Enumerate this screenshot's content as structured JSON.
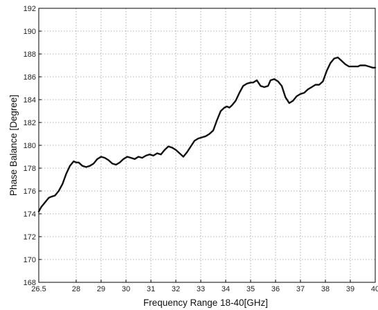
{
  "chart_data": {
    "type": "line",
    "title": "",
    "xlabel": "Frequency Range 18-40[GHz]",
    "ylabel": "Phase Balance [Degree]",
    "xlim": [
      26.5,
      40
    ],
    "ylim": [
      168,
      192
    ],
    "xticks": [
      26.5,
      28,
      29,
      30,
      31,
      32,
      33,
      34,
      35,
      36,
      37,
      38,
      39,
      40
    ],
    "xtick_labels": [
      "26.5",
      "28",
      "29",
      "30",
      "31",
      "32",
      "33",
      "34",
      "35",
      "36",
      "37",
      "38",
      "39",
      "40"
    ],
    "yticks": [
      168,
      170,
      172,
      174,
      176,
      178,
      180,
      182,
      184,
      186,
      188,
      190,
      192
    ],
    "ytick_labels": [
      "168",
      "170",
      "172",
      "174",
      "176",
      "178",
      "180",
      "182",
      "184",
      "186",
      "188",
      "190",
      "192"
    ],
    "grid": true,
    "line_color": "#111111",
    "series": [
      {
        "name": "",
        "x": [
          26.5,
          26.6,
          26.75,
          26.9,
          27.0,
          27.15,
          27.3,
          27.45,
          27.6,
          27.75,
          27.9,
          28.0,
          28.1,
          28.25,
          28.4,
          28.55,
          28.7,
          28.85,
          29.0,
          29.15,
          29.3,
          29.45,
          29.6,
          29.75,
          29.9,
          30.05,
          30.2,
          30.35,
          30.5,
          30.65,
          30.8,
          30.95,
          31.1,
          31.25,
          31.4,
          31.55,
          31.7,
          31.85,
          32.0,
          32.15,
          32.3,
          32.45,
          32.6,
          32.75,
          32.9,
          33.05,
          33.2,
          33.35,
          33.5,
          33.65,
          33.8,
          33.95,
          34.05,
          34.15,
          34.25,
          34.4,
          34.55,
          34.7,
          34.85,
          35.0,
          35.1,
          35.25,
          35.4,
          35.55,
          35.7,
          35.8,
          35.95,
          36.1,
          36.25,
          36.4,
          36.55,
          36.7,
          36.85,
          37.0,
          37.15,
          37.3,
          37.45,
          37.6,
          37.75,
          37.9,
          38.05,
          38.2,
          38.35,
          38.5,
          38.65,
          38.8,
          38.95,
          39.1,
          39.2,
          39.3,
          39.4,
          39.5,
          39.6,
          39.75,
          39.9,
          40.0
        ],
        "y": [
          174.2,
          174.6,
          175.0,
          175.4,
          175.5,
          175.6,
          176.0,
          176.6,
          177.5,
          178.2,
          178.6,
          178.5,
          178.5,
          178.2,
          178.1,
          178.2,
          178.4,
          178.8,
          179.0,
          178.9,
          178.7,
          178.4,
          178.3,
          178.5,
          178.8,
          179.0,
          178.9,
          178.8,
          179.0,
          178.9,
          179.1,
          179.2,
          179.1,
          179.3,
          179.2,
          179.6,
          179.9,
          179.8,
          179.6,
          179.3,
          179.0,
          179.4,
          179.9,
          180.4,
          180.6,
          180.7,
          180.8,
          181.0,
          181.3,
          182.2,
          183.0,
          183.3,
          183.4,
          183.3,
          183.5,
          183.9,
          184.6,
          185.2,
          185.4,
          185.5,
          185.5,
          185.7,
          185.2,
          185.1,
          185.2,
          185.7,
          185.8,
          185.6,
          185.2,
          184.2,
          183.7,
          183.9,
          184.3,
          184.5,
          184.6,
          184.9,
          185.1,
          185.3,
          185.3,
          185.6,
          186.5,
          187.2,
          187.6,
          187.7,
          187.4,
          187.1,
          186.9,
          186.9,
          186.9,
          186.9,
          187.0,
          187.0,
          187.0,
          186.9,
          186.8,
          186.8
        ]
      }
    ]
  }
}
